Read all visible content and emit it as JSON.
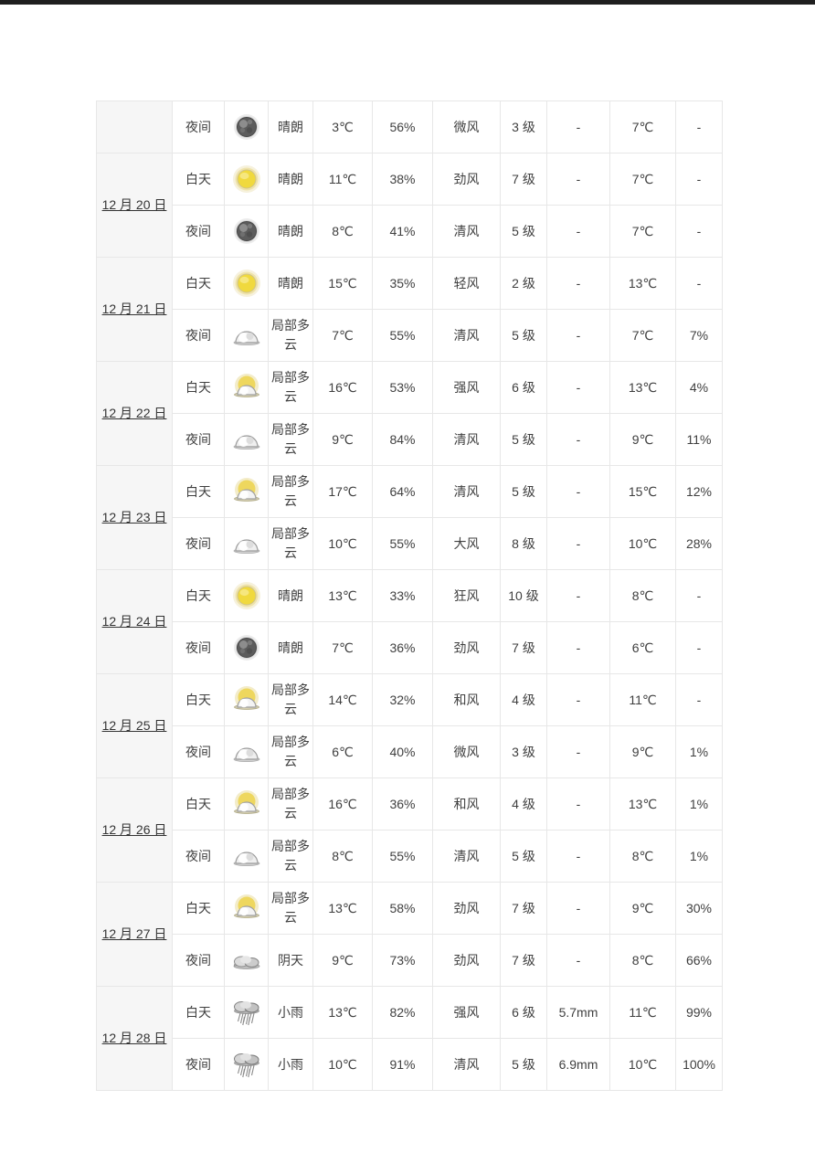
{
  "page": {
    "background": "#ffffff",
    "top_bar_color": "#1f1f1f",
    "table_border_color": "#e7e7e7",
    "date_column_bg": "#f6f6f6",
    "text_color": "#3f3f3f",
    "sun_color": "#f0d93e",
    "moon_color": "#5a5a5a",
    "cloud_color": "#d9d9d9"
  },
  "table": {
    "columns": [
      "date",
      "daypart",
      "icon",
      "condition",
      "temperature",
      "humidity",
      "wind_name",
      "wind_level",
      "precipitation",
      "temperature2",
      "probability"
    ],
    "groups": [
      {
        "date": "",
        "rows": [
          {
            "daypart": "夜间",
            "icon": "clear-night-icon",
            "condition": "晴朗",
            "temperature": "3℃",
            "humidity": "56%",
            "wind_name": "微风",
            "wind_level": "3 级",
            "precipitation": "-",
            "temperature2": "7℃",
            "probability": "-"
          }
        ]
      },
      {
        "date": "12 月 20 日",
        "rows": [
          {
            "daypart": "白天",
            "icon": "clear-day-icon",
            "condition": "晴朗",
            "temperature": "11℃",
            "humidity": "38%",
            "wind_name": "劲风",
            "wind_level": "7 级",
            "precipitation": "-",
            "temperature2": "7℃",
            "probability": "-"
          },
          {
            "daypart": "夜间",
            "icon": "clear-night-icon",
            "condition": "晴朗",
            "temperature": "8℃",
            "humidity": "41%",
            "wind_name": "清风",
            "wind_level": "5 级",
            "precipitation": "-",
            "temperature2": "7℃",
            "probability": "-"
          }
        ]
      },
      {
        "date": "12 月 21 日",
        "rows": [
          {
            "daypart": "白天",
            "icon": "clear-day-icon",
            "condition": "晴朗",
            "temperature": "15℃",
            "humidity": "35%",
            "wind_name": "轻风",
            "wind_level": "2 级",
            "precipitation": "-",
            "temperature2": "13℃",
            "probability": "-"
          },
          {
            "daypart": "夜间",
            "icon": "partly-cloudy-night-icon",
            "condition": "局部多云",
            "temperature": "7℃",
            "humidity": "55%",
            "wind_name": "清风",
            "wind_level": "5 级",
            "precipitation": "-",
            "temperature2": "7℃",
            "probability": "7%"
          }
        ]
      },
      {
        "date": "12 月 22 日",
        "rows": [
          {
            "daypart": "白天",
            "icon": "partly-cloudy-day-icon",
            "condition": "局部多云",
            "temperature": "16℃",
            "humidity": "53%",
            "wind_name": "强风",
            "wind_level": "6 级",
            "precipitation": "-",
            "temperature2": "13℃",
            "probability": "4%"
          },
          {
            "daypart": "夜间",
            "icon": "partly-cloudy-night-icon",
            "condition": "局部多云",
            "temperature": "9℃",
            "humidity": "84%",
            "wind_name": "清风",
            "wind_level": "5 级",
            "precipitation": "-",
            "temperature2": "9℃",
            "probability": "11%"
          }
        ]
      },
      {
        "date": "12 月 23 日",
        "rows": [
          {
            "daypart": "白天",
            "icon": "partly-cloudy-day-icon",
            "condition": "局部多云",
            "temperature": "17℃",
            "humidity": "64%",
            "wind_name": "清风",
            "wind_level": "5 级",
            "precipitation": "-",
            "temperature2": "15℃",
            "probability": "12%"
          },
          {
            "daypart": "夜间",
            "icon": "partly-cloudy-night-icon",
            "condition": "局部多云",
            "temperature": "10℃",
            "humidity": "55%",
            "wind_name": "大风",
            "wind_level": "8 级",
            "precipitation": "-",
            "temperature2": "10℃",
            "probability": "28%"
          }
        ]
      },
      {
        "date": "12 月 24 日",
        "rows": [
          {
            "daypart": "白天",
            "icon": "clear-day-icon",
            "condition": "晴朗",
            "temperature": "13℃",
            "humidity": "33%",
            "wind_name": "狂风",
            "wind_level": "10 级",
            "precipitation": "-",
            "temperature2": "8℃",
            "probability": "-"
          },
          {
            "daypart": "夜间",
            "icon": "clear-night-icon",
            "condition": "晴朗",
            "temperature": "7℃",
            "humidity": "36%",
            "wind_name": "劲风",
            "wind_level": "7 级",
            "precipitation": "-",
            "temperature2": "6℃",
            "probability": "-"
          }
        ]
      },
      {
        "date": "12 月 25 日",
        "rows": [
          {
            "daypart": "白天",
            "icon": "partly-cloudy-day-icon",
            "condition": "局部多云",
            "temperature": "14℃",
            "humidity": "32%",
            "wind_name": "和风",
            "wind_level": "4 级",
            "precipitation": "-",
            "temperature2": "11℃",
            "probability": "-"
          },
          {
            "daypart": "夜间",
            "icon": "partly-cloudy-night-icon",
            "condition": "局部多云",
            "temperature": "6℃",
            "humidity": "40%",
            "wind_name": "微风",
            "wind_level": "3 级",
            "precipitation": "-",
            "temperature2": "9℃",
            "probability": "1%"
          }
        ]
      },
      {
        "date": "12 月 26 日",
        "rows": [
          {
            "daypart": "白天",
            "icon": "partly-cloudy-day-icon",
            "condition": "局部多云",
            "temperature": "16℃",
            "humidity": "36%",
            "wind_name": "和风",
            "wind_level": "4 级",
            "precipitation": "-",
            "temperature2": "13℃",
            "probability": "1%"
          },
          {
            "daypart": "夜间",
            "icon": "partly-cloudy-night-icon",
            "condition": "局部多云",
            "temperature": "8℃",
            "humidity": "55%",
            "wind_name": "清风",
            "wind_level": "5 级",
            "precipitation": "-",
            "temperature2": "8℃",
            "probability": "1%"
          }
        ]
      },
      {
        "date": "12 月 27 日",
        "rows": [
          {
            "daypart": "白天",
            "icon": "partly-cloudy-day-icon",
            "condition": "局部多云",
            "temperature": "13℃",
            "humidity": "58%",
            "wind_name": "劲风",
            "wind_level": "7 级",
            "precipitation": "-",
            "temperature2": "9℃",
            "probability": "30%"
          },
          {
            "daypart": "夜间",
            "icon": "overcast-icon",
            "condition": "阴天",
            "temperature": "9℃",
            "humidity": "73%",
            "wind_name": "劲风",
            "wind_level": "7 级",
            "precipitation": "-",
            "temperature2": "8℃",
            "probability": "66%"
          }
        ]
      },
      {
        "date": "12 月 28 日",
        "rows": [
          {
            "daypart": "白天",
            "icon": "rain-icon",
            "condition": "小雨",
            "temperature": "13℃",
            "humidity": "82%",
            "wind_name": "强风",
            "wind_level": "6 级",
            "precipitation": "5.7mm",
            "temperature2": "11℃",
            "probability": "99%"
          },
          {
            "daypart": "夜间",
            "icon": "rain-icon",
            "condition": "小雨",
            "temperature": "10℃",
            "humidity": "91%",
            "wind_name": "清风",
            "wind_level": "5 级",
            "precipitation": "6.9mm",
            "temperature2": "10℃",
            "probability": "100%"
          }
        ]
      }
    ]
  }
}
